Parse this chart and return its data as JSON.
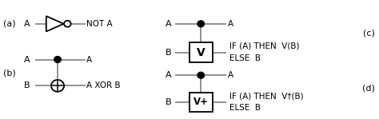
{
  "bg_color": "#ffffff",
  "line_color": "#888888",
  "text_color": "#000000",
  "label_a": "A",
  "label_b": "B",
  "not_label": "NOT A",
  "xor_label": "A XOR B",
  "c_label1": "IF (A) THEN  V(B)",
  "c_label2": "ELSE  B",
  "d_label1": "IF (A) THEN  V†(B)",
  "d_label2": "ELSE  B",
  "section_a": "(a)",
  "section_b": "(b)",
  "section_c": "(c)",
  "section_d": "(d)",
  "xlim": [
    0,
    10
  ],
  "ylim": [
    0,
    3.4
  ],
  "lw": 1.3,
  "fs_main": 8.0,
  "fs_label": 7.5
}
